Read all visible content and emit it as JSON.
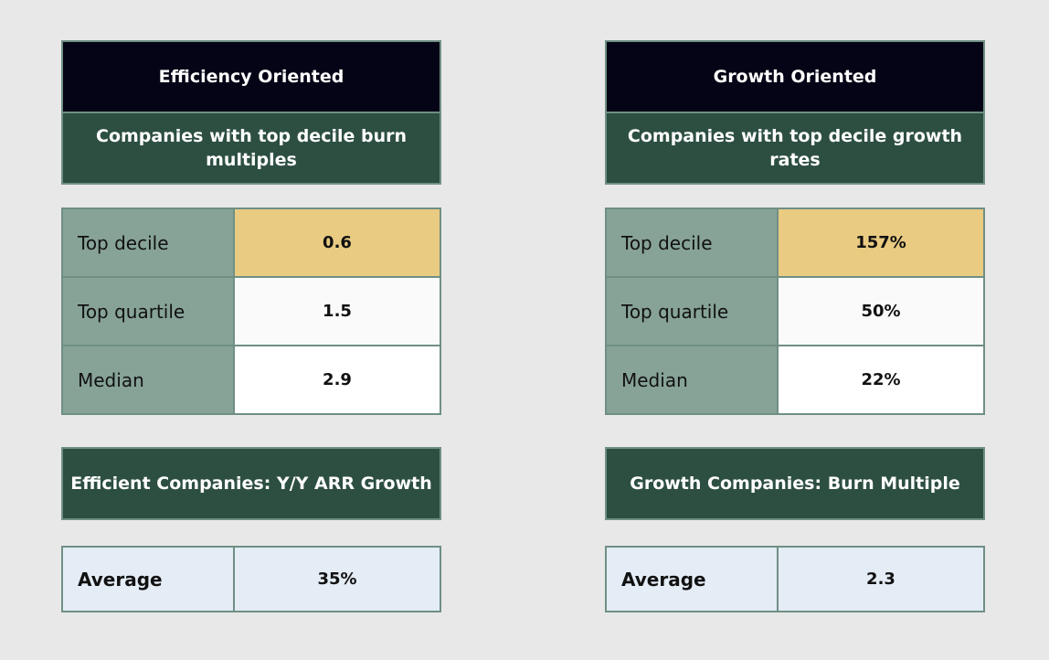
{
  "left": {
    "title": "Efficiency Oriented",
    "subtitle": "Companies with top decile burn multiples",
    "stats": [
      {
        "label": "Top decile",
        "value": "0.6"
      },
      {
        "label": "Top quartile",
        "value": "1.5"
      },
      {
        "label": "Median",
        "value": "2.9"
      }
    ],
    "section_title": "Efficient Companies: Y/Y ARR Growth",
    "average_label": "Average",
    "average_value": "35%"
  },
  "right": {
    "title": "Growth Oriented",
    "subtitle": "Companies with top decile growth rates",
    "stats": [
      {
        "label": "Top decile",
        "value": "157%"
      },
      {
        "label": "Top quartile",
        "value": "50%"
      },
      {
        "label": "Median",
        "value": "22%"
      }
    ],
    "section_title": "Growth Companies: Burn Multiple",
    "average_label": "Average",
    "average_value": "2.3"
  },
  "colors": {
    "title_bg": "#050416",
    "header_bg": "#2d4f42",
    "label_bg": "#87a398",
    "highlight_bg": "#e9cb82",
    "average_bg": "#e4ecf5",
    "border": "#6f8f84"
  }
}
